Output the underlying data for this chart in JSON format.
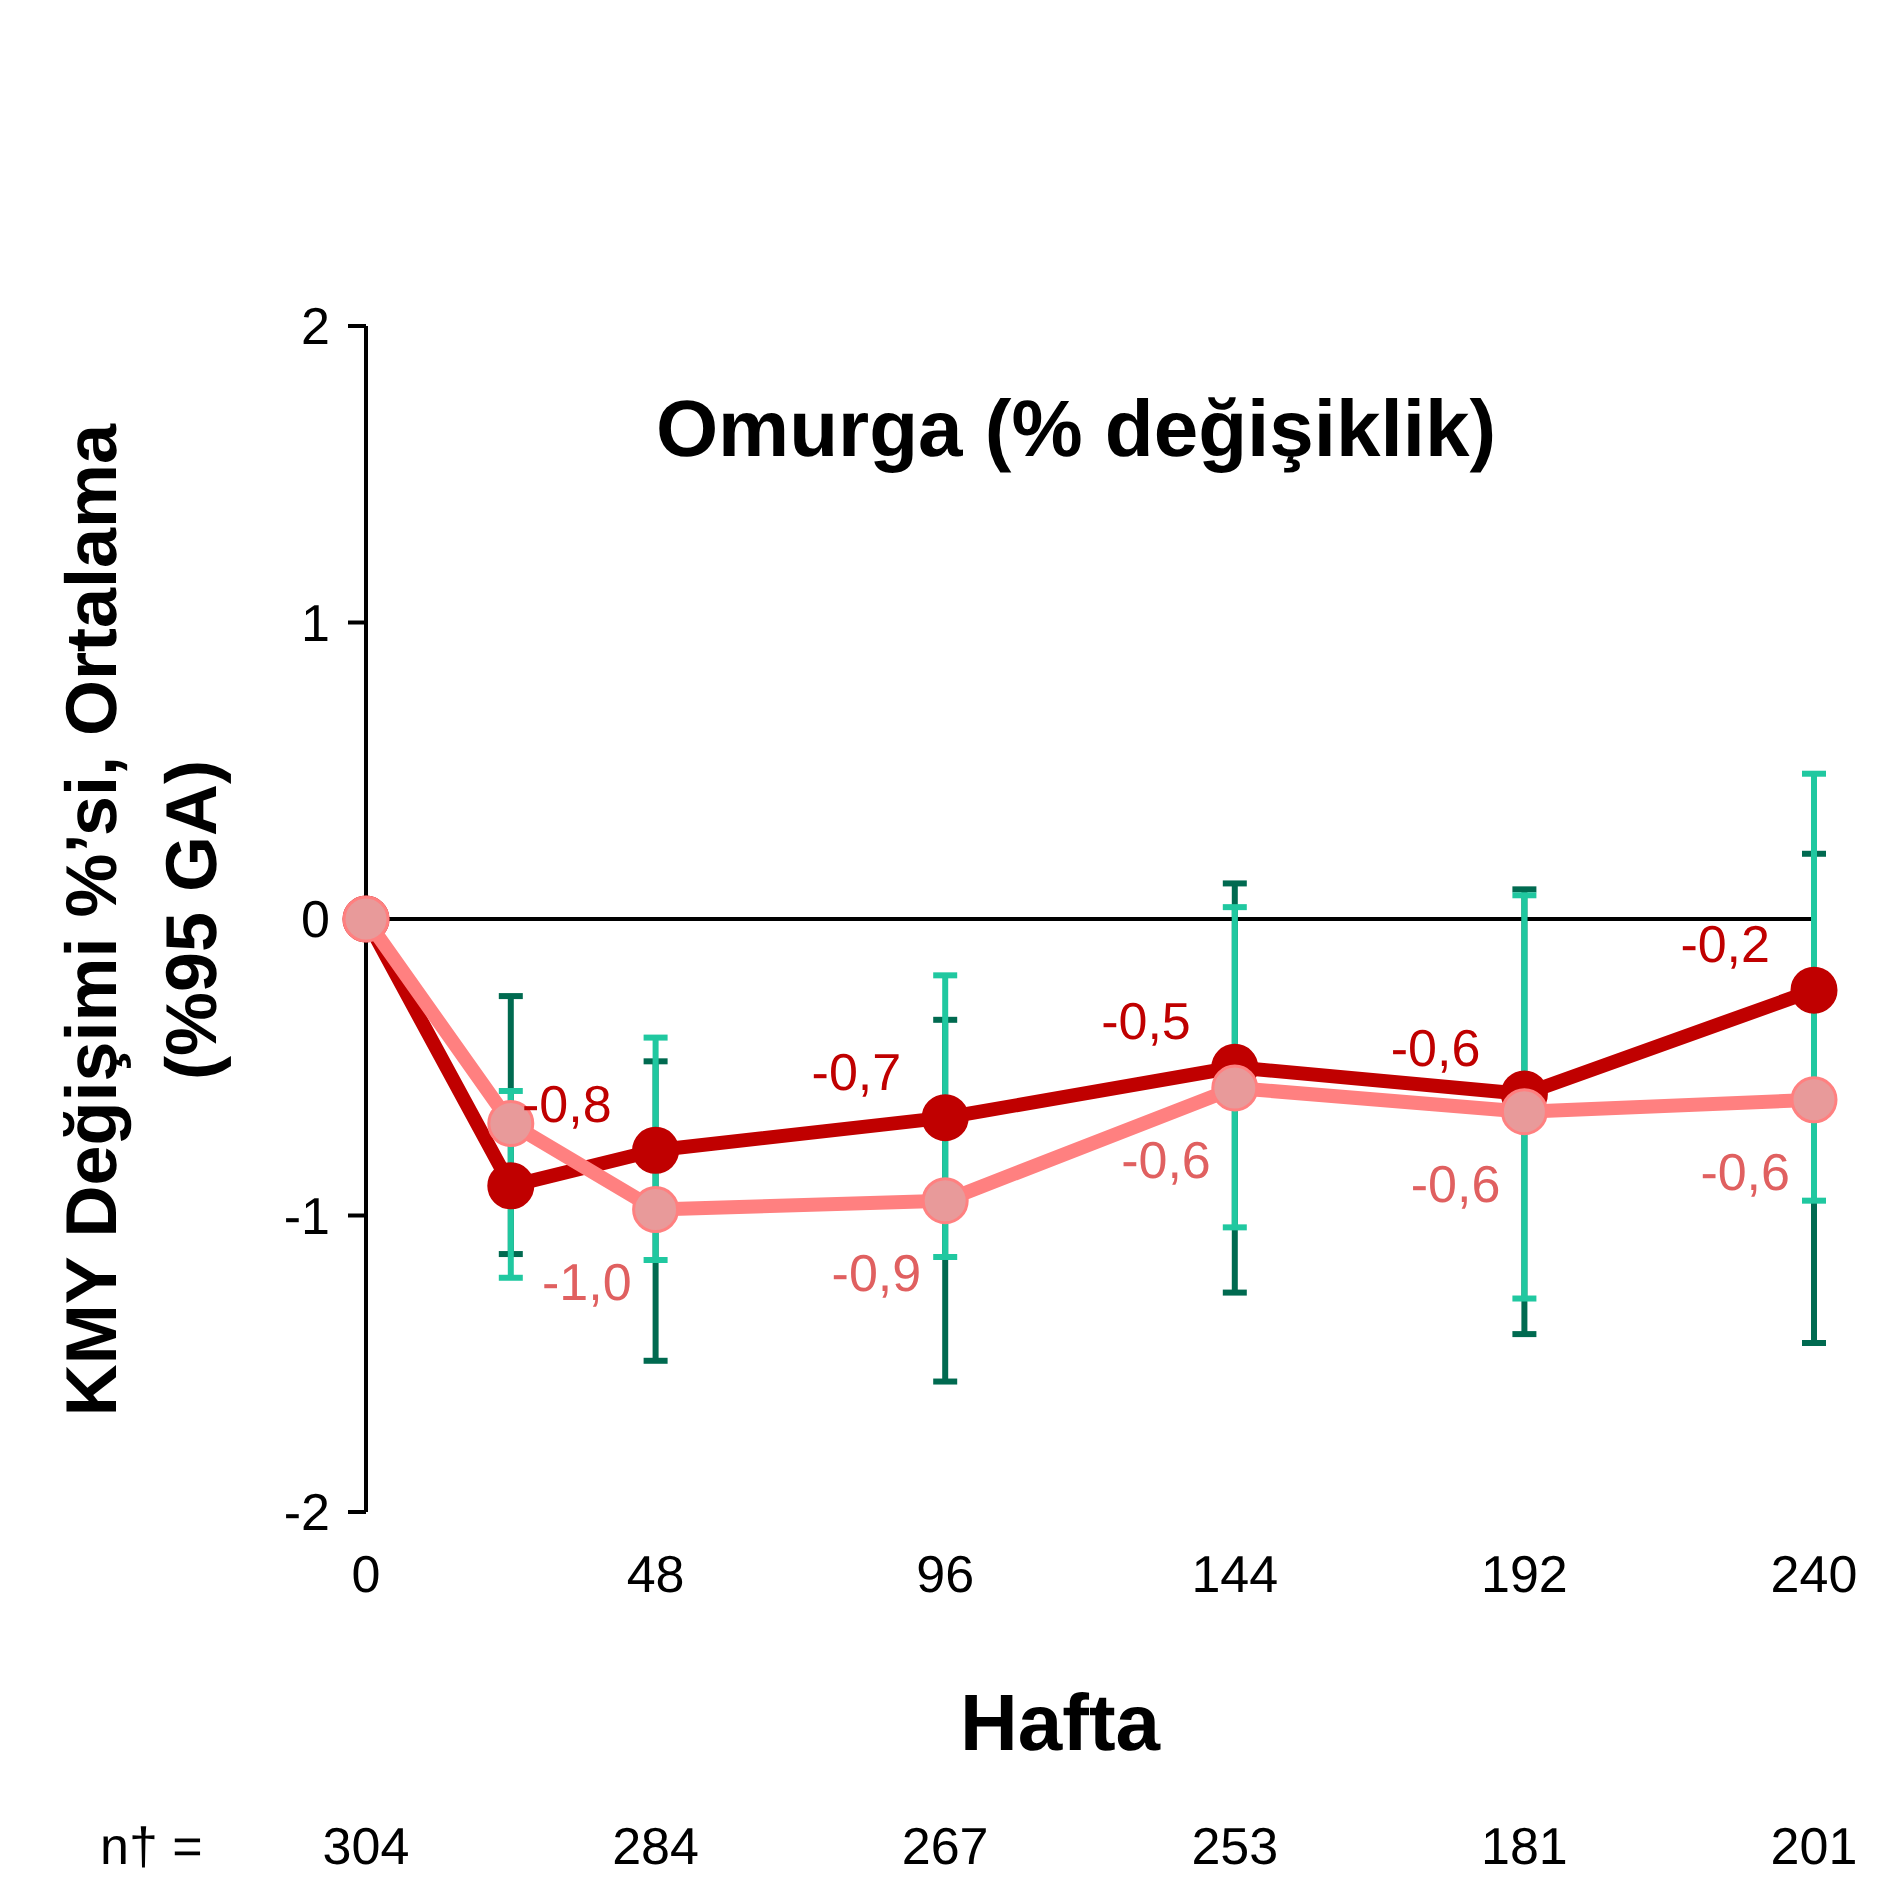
{
  "chart_data": {
    "type": "line",
    "title": "Omurga (% değişiklik)",
    "xlabel": "Hafta",
    "ylabel": "KMY Değişimi %’si, Ortalama (%95 GA)",
    "x": [
      0,
      24,
      48,
      96,
      144,
      192,
      240
    ],
    "xlim": [
      0,
      240
    ],
    "xticks": [
      0,
      48,
      96,
      144,
      192,
      240
    ],
    "ylim": [
      -2,
      2
    ],
    "yticks": [
      -2,
      -1,
      0,
      1,
      2
    ],
    "marker": "circle",
    "series": [
      {
        "color": "#c00000",
        "values": [
          0,
          -0.9,
          -0.78,
          -0.67,
          -0.5,
          -0.59,
          -0.24
        ],
        "errors": [
          null,
          [
            -1.13,
            -0.26
          ],
          [
            -1.49,
            -0.48
          ],
          [
            -1.56,
            -0.34
          ],
          [
            -1.26,
            0.12
          ],
          [
            -1.4,
            0.1
          ],
          [
            -1.43,
            0.22
          ]
        ],
        "value_labels": [
          null,
          null,
          "-0,8",
          "-0,7",
          "-0,5",
          "-0,6",
          "-0,2"
        ]
      },
      {
        "color": "#ff8080",
        "values": [
          0,
          -0.69,
          -0.98,
          -0.95,
          -0.57,
          -0.65,
          -0.61
        ],
        "errors": [
          null,
          [
            -1.21,
            -0.58
          ],
          [
            -1.15,
            -0.4
          ],
          [
            -1.14,
            -0.19
          ],
          [
            -1.04,
            0.04
          ],
          [
            -1.28,
            0.08
          ],
          [
            -0.95,
            0.49
          ]
        ],
        "value_labels": [
          null,
          null,
          "-1,0",
          "-0,9",
          "-0,6",
          "-0,6",
          "-0,6"
        ]
      }
    ],
    "annotations": [
      "n† =",
      "304",
      "284",
      "267",
      "253",
      "181",
      "201"
    ]
  }
}
